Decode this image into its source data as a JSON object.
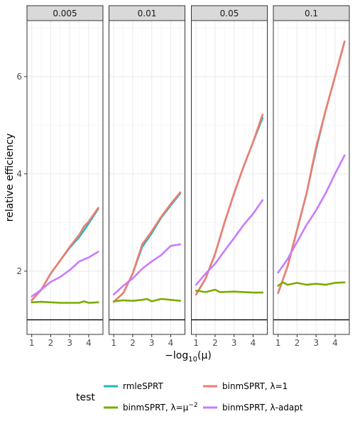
{
  "chart_data": {
    "type": "line",
    "facet_titles": [
      "0.005",
      "0.01",
      "0.05",
      "0.1"
    ],
    "xlabel_prefix": "−log",
    "xlabel_sub": "10",
    "xlabel_suffix": "(μ)",
    "ylabel": "relative efficiency",
    "x_ticks": [
      1,
      2,
      3,
      4
    ],
    "y_ticks": [
      2,
      4,
      6
    ],
    "xlim": [
      0.75,
      4.75
    ],
    "ylim": [
      0.7,
      7.15
    ],
    "reference_line_y": 1,
    "grid": true,
    "legend_position": "bottom",
    "legend_title": "test",
    "series": [
      {
        "key": "rmle",
        "name": "rmleSPRT",
        "color": "#1fb9b9",
        "values": [
          [
            [
              1,
              1.4
            ],
            [
              1.5,
              1.62
            ],
            [
              2,
              1.95
            ],
            [
              2.5,
              2.22
            ],
            [
              3,
              2.48
            ],
            [
              3.5,
              2.7
            ],
            [
              4,
              2.98
            ],
            [
              4.5,
              3.28
            ]
          ],
          [
            [
              1,
              1.37
            ],
            [
              1.5,
              1.55
            ],
            [
              2,
              1.95
            ],
            [
              2.5,
              2.5
            ],
            [
              3,
              2.78
            ],
            [
              3.5,
              3.1
            ],
            [
              4,
              3.35
            ],
            [
              4.5,
              3.6
            ]
          ],
          [
            [
              1,
              1.52
            ],
            [
              1.5,
              1.85
            ],
            [
              2,
              2.35
            ],
            [
              2.5,
              3.0
            ],
            [
              3,
              3.6
            ],
            [
              3.5,
              4.15
            ],
            [
              4,
              4.65
            ],
            [
              4.5,
              5.15
            ]
          ],
          [
            [
              1,
              1.55
            ],
            [
              1.5,
              2.1
            ],
            [
              2,
              2.85
            ],
            [
              2.5,
              3.6
            ],
            [
              3,
              4.5
            ],
            [
              3.5,
              5.3
            ],
            [
              4,
              6.0
            ],
            [
              4.5,
              6.72
            ]
          ]
        ]
      },
      {
        "key": "binm1",
        "name": "binmSPRT, λ=1",
        "color": "#f07d70",
        "values": [
          [
            [
              1,
              1.4
            ],
            [
              1.5,
              1.62
            ],
            [
              2,
              1.95
            ],
            [
              2.5,
              2.22
            ],
            [
              3,
              2.5
            ],
            [
              3.5,
              2.75
            ],
            [
              3.75,
              2.92
            ],
            [
              4,
              3.02
            ],
            [
              4.5,
              3.3
            ]
          ],
          [
            [
              1,
              1.37
            ],
            [
              1.5,
              1.55
            ],
            [
              2,
              1.95
            ],
            [
              2.5,
              2.55
            ],
            [
              3,
              2.82
            ],
            [
              3.5,
              3.12
            ],
            [
              4,
              3.38
            ],
            [
              4.5,
              3.62
            ]
          ],
          [
            [
              1,
              1.52
            ],
            [
              1.5,
              1.85
            ],
            [
              2,
              2.35
            ],
            [
              2.5,
              3.0
            ],
            [
              3,
              3.6
            ],
            [
              3.5,
              4.15
            ],
            [
              4,
              4.65
            ],
            [
              4.5,
              5.22
            ]
          ],
          [
            [
              1,
              1.55
            ],
            [
              1.5,
              2.1
            ],
            [
              2,
              2.85
            ],
            [
              2.5,
              3.6
            ],
            [
              3,
              4.55
            ],
            [
              3.5,
              5.3
            ],
            [
              4,
              6.0
            ],
            [
              4.5,
              6.72
            ]
          ]
        ]
      },
      {
        "key": "binmmu",
        "name": "binmSPRT, λ=μ",
        "name_sup": "−2",
        "color": "#7aac00",
        "values": [
          [
            [
              1,
              1.36
            ],
            [
              1.5,
              1.37
            ],
            [
              2,
              1.36
            ],
            [
              2.5,
              1.35
            ],
            [
              3,
              1.35
            ],
            [
              3.5,
              1.35
            ],
            [
              3.75,
              1.38
            ],
            [
              4,
              1.35
            ],
            [
              4.5,
              1.36
            ]
          ],
          [
            [
              1,
              1.38
            ],
            [
              1.5,
              1.4
            ],
            [
              2,
              1.39
            ],
            [
              2.5,
              1.41
            ],
            [
              2.75,
              1.43
            ],
            [
              3,
              1.38
            ],
            [
              3.5,
              1.43
            ],
            [
              4,
              1.41
            ],
            [
              4.5,
              1.39
            ]
          ],
          [
            [
              1,
              1.6
            ],
            [
              1.5,
              1.57
            ],
            [
              2,
              1.62
            ],
            [
              2.25,
              1.57
            ],
            [
              3,
              1.58
            ],
            [
              3.5,
              1.57
            ],
            [
              4,
              1.56
            ],
            [
              4.5,
              1.56
            ]
          ],
          [
            [
              1,
              1.7
            ],
            [
              1.25,
              1.77
            ],
            [
              1.5,
              1.72
            ],
            [
              2,
              1.76
            ],
            [
              2.5,
              1.72
            ],
            [
              3,
              1.74
            ],
            [
              3.5,
              1.72
            ],
            [
              4,
              1.76
            ],
            [
              4.5,
              1.77
            ]
          ]
        ]
      },
      {
        "key": "binmadapt",
        "name": "binmSPRT, λ-adapt",
        "color": "#c77cff",
        "values": [
          [
            [
              1,
              1.48
            ],
            [
              1.5,
              1.62
            ],
            [
              2,
              1.78
            ],
            [
              2.5,
              1.88
            ],
            [
              3,
              2.02
            ],
            [
              3.5,
              2.2
            ],
            [
              4,
              2.28
            ],
            [
              4.5,
              2.4
            ]
          ],
          [
            [
              1,
              1.52
            ],
            [
              1.5,
              1.7
            ],
            [
              2,
              1.85
            ],
            [
              2.5,
              2.05
            ],
            [
              3,
              2.2
            ],
            [
              3.5,
              2.33
            ],
            [
              4,
              2.52
            ],
            [
              4.5,
              2.55
            ]
          ],
          [
            [
              1,
              1.72
            ],
            [
              1.5,
              1.95
            ],
            [
              2,
              2.15
            ],
            [
              2.5,
              2.42
            ],
            [
              3,
              2.68
            ],
            [
              3.5,
              2.95
            ],
            [
              4,
              3.18
            ],
            [
              4.5,
              3.46
            ]
          ],
          [
            [
              1,
              1.97
            ],
            [
              1.5,
              2.25
            ],
            [
              2,
              2.6
            ],
            [
              2.5,
              2.95
            ],
            [
              3,
              3.25
            ],
            [
              3.5,
              3.6
            ],
            [
              4,
              4.0
            ],
            [
              4.5,
              4.38
            ]
          ]
        ]
      }
    ]
  }
}
